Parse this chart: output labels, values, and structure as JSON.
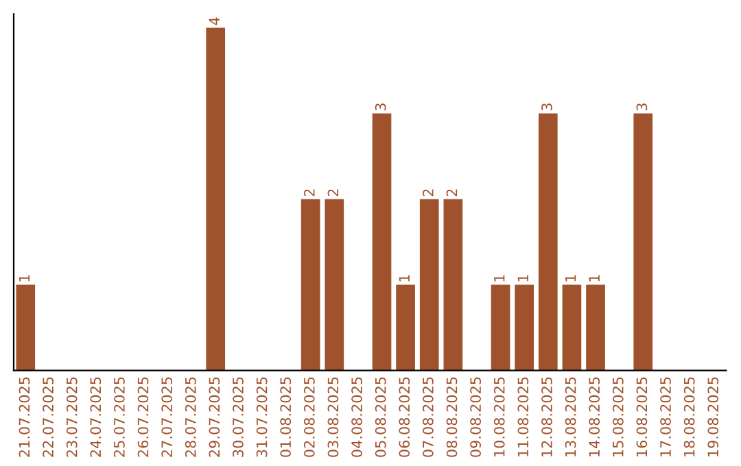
{
  "chart_data": {
    "type": "bar",
    "categories": [
      "21.07.2025",
      "22.07.2025",
      "23.07.2025",
      "24.07.2025",
      "25.07.2025",
      "26.07.2025",
      "27.07.2025",
      "28.07.2025",
      "29.07.2025",
      "30.07.2025",
      "31.07.2025",
      "01.08.2025",
      "02.08.2025",
      "03.08.2025",
      "04.08.2025",
      "05.08.2025",
      "06.08.2025",
      "07.08.2025",
      "08.08.2025",
      "09.08.2025",
      "10.08.2025",
      "11.08.2025",
      "12.08.2025",
      "13.08.2025",
      "14.08.2025",
      "15.08.2025",
      "16.08.2025",
      "17.08.2025",
      "18.08.2025",
      "19.08.2025"
    ],
    "values": [
      1,
      null,
      null,
      null,
      null,
      null,
      null,
      null,
      4,
      null,
      null,
      null,
      2,
      2,
      null,
      3,
      1,
      2,
      2,
      null,
      1,
      1,
      3,
      1,
      1,
      null,
      3,
      null,
      null,
      null
    ],
    "color": "#a0522d",
    "data_labels": true,
    "tick_labels": "x",
    "grid": false,
    "legend": false
  }
}
